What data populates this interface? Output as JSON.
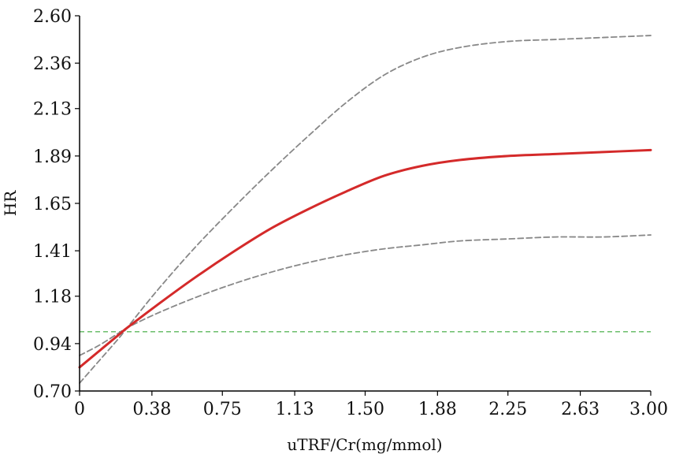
{
  "chart_data": {
    "type": "line",
    "xlabel": "uTRF/Cr(mg/mmol)",
    "ylabel": "HR",
    "xlim": [
      0,
      3.0
    ],
    "ylim": [
      0.7,
      2.6
    ],
    "x_ticks": [
      "0",
      "0.38",
      "0.75",
      "1.13",
      "1.50",
      "1.88",
      "2.25",
      "2.63",
      "3.00"
    ],
    "x_tick_values": [
      0,
      0.38,
      0.75,
      1.13,
      1.5,
      1.88,
      2.25,
      2.63,
      3.0
    ],
    "y_ticks": [
      "0.70",
      "0.94",
      "1.18",
      "1.41",
      "1.65",
      "1.89",
      "2.13",
      "2.36",
      "2.60"
    ],
    "y_tick_values": [
      0.7,
      0.94,
      1.18,
      1.41,
      1.65,
      1.89,
      2.13,
      2.36,
      2.6
    ],
    "reference_line": {
      "y": 1.0,
      "color": "#5cb85c",
      "style": "dashed"
    },
    "grid": false,
    "series": [
      {
        "role": "estimate",
        "color": "#d42a2a",
        "style": "solid",
        "x": [
          0,
          0.1,
          0.2,
          0.25,
          0.4,
          0.6,
          0.8,
          1.0,
          1.2,
          1.4,
          1.6,
          1.8,
          2.0,
          2.25,
          2.5,
          2.75,
          3.0
        ],
        "y": [
          0.82,
          0.9,
          0.98,
          1.02,
          1.13,
          1.27,
          1.4,
          1.52,
          1.62,
          1.71,
          1.79,
          1.84,
          1.87,
          1.89,
          1.9,
          1.91,
          1.92
        ]
      },
      {
        "role": "upper_ci",
        "color": "#888888",
        "style": "dashed",
        "x": [
          0,
          0.1,
          0.2,
          0.25,
          0.4,
          0.6,
          0.8,
          1.0,
          1.2,
          1.4,
          1.6,
          1.8,
          2.0,
          2.25,
          2.5,
          2.75,
          3.0
        ],
        "y": [
          0.74,
          0.85,
          0.96,
          1.02,
          1.2,
          1.42,
          1.62,
          1.81,
          1.99,
          2.16,
          2.3,
          2.39,
          2.44,
          2.47,
          2.48,
          2.49,
          2.5
        ]
      },
      {
        "role": "lower_ci",
        "color": "#888888",
        "style": "dashed",
        "x": [
          0,
          0.1,
          0.2,
          0.25,
          0.4,
          0.6,
          0.8,
          1.0,
          1.2,
          1.4,
          1.6,
          1.8,
          2.0,
          2.25,
          2.5,
          2.75,
          3.0
        ],
        "y": [
          0.88,
          0.93,
          0.99,
          1.02,
          1.09,
          1.17,
          1.24,
          1.3,
          1.35,
          1.39,
          1.42,
          1.44,
          1.46,
          1.47,
          1.48,
          1.48,
          1.49
        ]
      }
    ]
  }
}
